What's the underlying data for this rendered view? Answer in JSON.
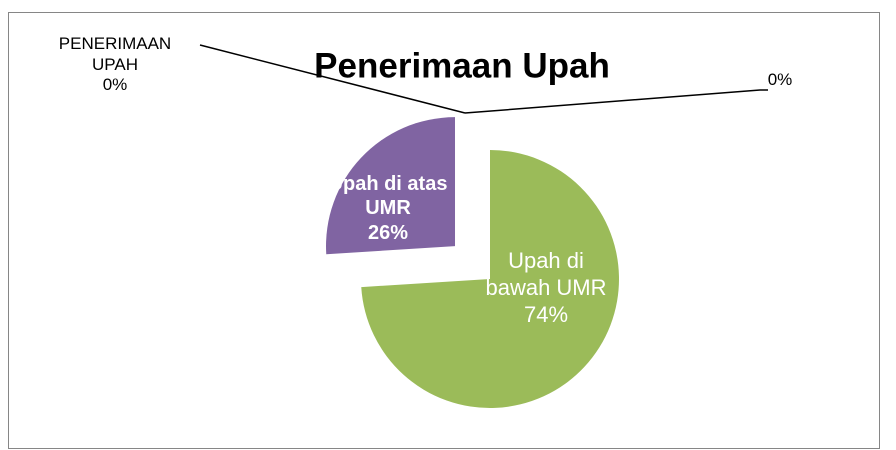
{
  "chart_data": {
    "type": "pie",
    "title": "Penerimaan Upah",
    "categories": [
      "Upah di bawah UMR",
      "Upah di atas UMR",
      "PENERIMAAN UPAH",
      null
    ],
    "values": [
      74,
      26,
      0,
      0
    ],
    "value_labels": [
      "74%",
      "26%",
      "0%",
      "0%"
    ],
    "colors": [
      "#9bbb59",
      "#8064a2",
      "#4f81bd",
      "#c0504d"
    ]
  }
}
